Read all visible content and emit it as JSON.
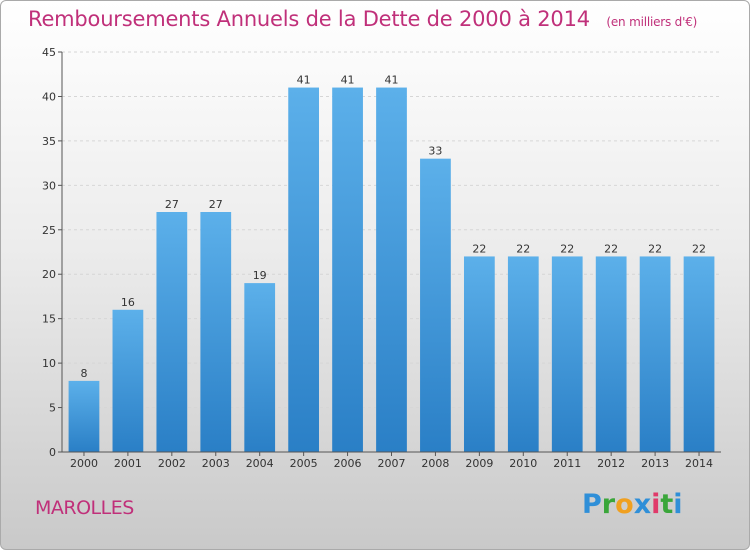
{
  "title": "Remboursements Annuels de la Dette de 2000 à 2014",
  "subtitle": "(en milliers d'€)",
  "commune": "MAROLLES",
  "logo": {
    "letters": [
      "P",
      "r",
      "o",
      "x",
      "i",
      "t",
      "i"
    ],
    "colors": [
      "#2f8fd8",
      "#3aa63a",
      "#f0a020",
      "#2f8fd8",
      "#e03a6a",
      "#3aa63a",
      "#2f8fd8"
    ]
  },
  "colors": {
    "bar": "#4ea6e4",
    "bar_dark": "#2a7fc6",
    "title": "#c0307a"
  },
  "chart_data": {
    "type": "bar",
    "title": "Remboursements Annuels de la Dette de 2000 à 2014",
    "xlabel": "",
    "ylabel": "",
    "ylim": [
      0,
      45
    ],
    "yticks": [
      0,
      5,
      10,
      15,
      20,
      25,
      30,
      35,
      40,
      45
    ],
    "grid": true,
    "categories": [
      "2000",
      "2001",
      "2002",
      "2003",
      "2004",
      "2005",
      "2006",
      "2007",
      "2008",
      "2009",
      "2010",
      "2011",
      "2012",
      "2013",
      "2014"
    ],
    "values": [
      8,
      16,
      27,
      27,
      19,
      41,
      41,
      41,
      33,
      22,
      22,
      22,
      22,
      22,
      22
    ]
  }
}
